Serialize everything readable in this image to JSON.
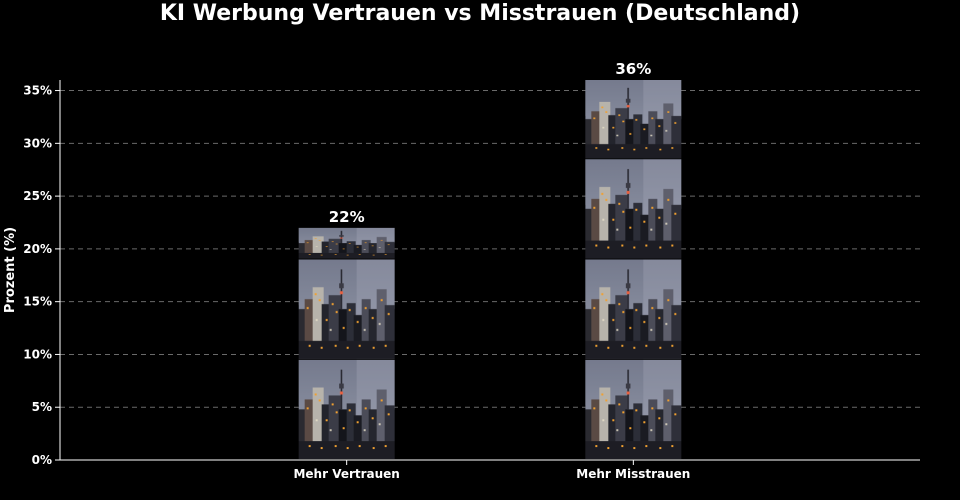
{
  "chart_data": {
    "type": "bar",
    "title": "KI Werbung Vertrauen vs Misstrauen (Deutschland)",
    "xlabel": "",
    "ylabel": "Prozent (%)",
    "categories": [
      "Mehr Vertrauen",
      "Mehr Misstrauen"
    ],
    "values": [
      22,
      36
    ],
    "value_labels": [
      "22%",
      "36%"
    ],
    "ylim": [
      0,
      36
    ],
    "yticks": [
      0,
      5,
      10,
      15,
      20,
      25,
      30,
      35
    ],
    "ytick_labels": [
      "0%",
      "5%",
      "10%",
      "15%",
      "20%",
      "25%",
      "30%",
      "35%"
    ],
    "grid": "y-dashed",
    "bar_fill": "city-skyline-image-stack",
    "bar_image_unit": 9.5,
    "background": "#000000",
    "text_color": "#ffffff"
  }
}
